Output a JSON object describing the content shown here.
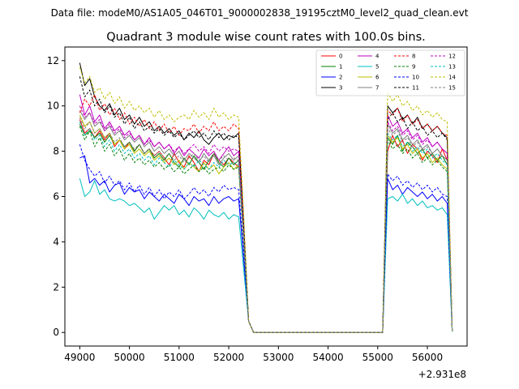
{
  "header": {
    "subtitle": "Data file: modeM0/AS1A05_046T01_9000002838_19195cztM0_level2_quad_clean.evt"
  },
  "chart_data": {
    "type": "line",
    "title": "Quadrant 3 module wise count rates with 100.0s bins.",
    "xlabel": "",
    "ylabel": "",
    "x_offset_label": "+2.931e8",
    "x_offset": 293100000,
    "xlim": [
      48700,
      56800
    ],
    "ylim": [
      -0.6,
      12.6
    ],
    "xticks": [
      49000,
      50000,
      51000,
      52000,
      53000,
      54000,
      55000,
      56000
    ],
    "yticks": [
      0,
      2,
      4,
      6,
      8,
      10,
      12
    ],
    "legend_position": "top-right",
    "x": {
      "seg1_start": 49000,
      "seg1_end": 52200,
      "seg1_step": 100,
      "drop": [
        52300,
        52400,
        52500
      ],
      "gap_end": 55100,
      "seg2_start": 55200,
      "seg2_end": 56400,
      "seg2_step": 100,
      "tail": [
        56500
      ]
    },
    "series": [
      {
        "name": "0",
        "color": "#ff0000",
        "dashed": false,
        "segment1": [
          9.4,
          8.8,
          9.0,
          8.6,
          8.9,
          8.5,
          8.8,
          8.2,
          8.5,
          8.1,
          8.4,
          8.0,
          8.3,
          7.9,
          8.1,
          7.8,
          8.0,
          7.7,
          7.4,
          7.9,
          7.5,
          7.3,
          7.8,
          7.5,
          7.1,
          7.6,
          7.4,
          7.9,
          7.6,
          7.4,
          7.7,
          7.5,
          7.3
        ],
        "segment2": [
          8.0,
          8.7,
          8.2,
          8.5,
          7.9,
          8.3,
          8.1,
          7.6,
          8.0,
          7.8,
          7.5,
          8.1,
          7.6
        ]
      },
      {
        "name": "1",
        "color": "#008000",
        "dashed": false,
        "segment1": [
          9.2,
          8.7,
          8.9,
          8.6,
          8.8,
          8.4,
          8.7,
          8.3,
          8.5,
          8.2,
          8.4,
          8.0,
          8.3,
          7.9,
          8.1,
          7.7,
          7.9,
          7.6,
          7.9,
          7.5,
          7.3,
          7.7,
          7.4,
          7.8,
          7.5,
          7.2,
          7.6,
          7.9,
          7.5,
          7.3,
          7.7,
          7.4,
          7.6
        ],
        "segment2": [
          8.6,
          8.3,
          8.7,
          8.0,
          8.4,
          8.2,
          7.9,
          8.1,
          7.7,
          7.9,
          7.6,
          7.8,
          7.4
        ]
      },
      {
        "name": "2",
        "color": "#0000ff",
        "dashed": false,
        "segment1": [
          7.7,
          7.8,
          6.6,
          6.8,
          6.5,
          6.7,
          6.2,
          6.5,
          6.6,
          6.1,
          6.4,
          6.2,
          6.3,
          5.9,
          6.2,
          6.0,
          5.8,
          6.1,
          5.9,
          5.7,
          6.1,
          5.9,
          5.6,
          6.0,
          5.8,
          5.9,
          5.6,
          6.0,
          5.7,
          5.9,
          6.0,
          5.8,
          5.9
        ],
        "segment2": [
          6.8,
          6.3,
          6.5,
          6.1,
          6.4,
          6.2,
          6.0,
          6.2,
          5.9,
          6.1,
          5.8,
          6.0,
          5.7
        ]
      },
      {
        "name": "3",
        "color": "#000000",
        "dashed": false,
        "segment1": [
          11.9,
          10.9,
          11.2,
          10.4,
          10.0,
          9.8,
          10.1,
          9.6,
          9.9,
          9.4,
          9.6,
          9.2,
          9.5,
          9.1,
          9.3,
          8.9,
          9.1,
          8.8,
          9.0,
          8.7,
          8.9,
          8.5,
          8.8,
          8.6,
          8.9,
          8.5,
          8.3,
          8.6,
          8.8,
          8.5,
          8.7,
          8.6,
          8.8
        ],
        "segment2": [
          10.0,
          9.7,
          9.9,
          9.4,
          9.6,
          9.2,
          9.5,
          9.0,
          9.2,
          8.9,
          9.1,
          8.8,
          8.6
        ]
      },
      {
        "name": "4",
        "color": "#bf00bf",
        "dashed": false,
        "segment1": [
          10.5,
          9.6,
          10.0,
          9.3,
          9.6,
          9.0,
          9.3,
          8.9,
          9.1,
          8.7,
          8.9,
          8.5,
          8.7,
          8.3,
          8.6,
          8.2,
          8.4,
          8.1,
          8.3,
          7.9,
          8.2,
          7.8,
          8.1,
          7.9,
          7.7,
          8.1,
          7.8,
          8.0,
          7.6,
          7.9,
          8.2,
          7.8,
          8.0
        ],
        "segment2": [
          9.6,
          9.1,
          9.3,
          8.8,
          9.0,
          8.6,
          8.8,
          8.4,
          8.6,
          8.2,
          8.4,
          8.1,
          7.9
        ]
      },
      {
        "name": "5",
        "color": "#00bfbf",
        "dashed": false,
        "segment1": [
          6.8,
          6.0,
          6.2,
          6.7,
          6.1,
          6.3,
          5.9,
          5.8,
          5.9,
          5.8,
          5.6,
          5.7,
          5.5,
          5.3,
          5.5,
          5.0,
          5.3,
          5.6,
          5.4,
          5.6,
          5.2,
          5.4,
          5.1,
          5.5,
          5.3,
          5.0,
          5.4,
          5.2,
          5.1,
          5.3,
          5.0,
          5.2,
          5.1
        ],
        "segment2": [
          5.9,
          6.0,
          5.8,
          6.1,
          5.7,
          5.9,
          5.6,
          5.8,
          5.5,
          5.6,
          5.4,
          5.5,
          5.2
        ]
      },
      {
        "name": "6",
        "color": "#bfbf00",
        "dashed": false,
        "segment1": [
          9.6,
          9.1,
          9.3,
          8.8,
          9.0,
          8.6,
          8.8,
          8.3,
          8.5,
          8.1,
          8.3,
          7.9,
          8.1,
          7.8,
          8.0,
          7.6,
          7.8,
          7.5,
          7.7,
          7.4,
          7.6,
          7.2,
          7.5,
          7.3,
          7.1,
          7.5,
          7.2,
          7.4,
          7.0,
          7.3,
          7.5,
          7.2,
          7.4
        ],
        "segment2": [
          8.7,
          8.4,
          8.6,
          8.1,
          8.3,
          7.9,
          8.1,
          7.7,
          7.9,
          7.5,
          7.7,
          7.4,
          7.2
        ]
      },
      {
        "name": "7",
        "color": "#808080",
        "dashed": false,
        "segment1": [
          9.8,
          9.4,
          9.7,
          9.1,
          9.3,
          8.9,
          9.1,
          8.7,
          8.9,
          8.5,
          8.7,
          8.4,
          8.6,
          8.2,
          8.4,
          8.0,
          8.2,
          7.9,
          8.1,
          7.8,
          8.0,
          7.6,
          7.9,
          7.7,
          7.5,
          7.9,
          7.6,
          7.8,
          7.4,
          7.7,
          7.9,
          7.6,
          7.8
        ],
        "segment2": [
          9.2,
          8.8,
          9.0,
          8.5,
          8.7,
          8.3,
          8.5,
          8.1,
          8.3,
          7.9,
          8.1,
          7.8,
          7.6
        ]
      },
      {
        "name": "8",
        "color": "#ff0000",
        "dashed": true,
        "segment1": [
          9.7,
          10.3,
          10.0,
          10.5,
          9.8,
          10.1,
          9.6,
          9.9,
          9.4,
          9.7,
          9.2,
          9.5,
          9.1,
          9.4,
          9.0,
          9.3,
          8.9,
          9.2,
          8.8,
          9.1,
          8.7,
          9.0,
          8.9,
          9.2,
          8.8,
          9.1,
          8.9,
          9.3,
          8.9,
          9.1,
          8.9,
          9.2,
          9.0
        ],
        "segment2": [
          9.8,
          9.6,
          9.9,
          9.3,
          9.6,
          9.2,
          9.4,
          9.0,
          9.2,
          8.9,
          9.1,
          8.8,
          8.7
        ]
      },
      {
        "name": "9",
        "color": "#008000",
        "dashed": true,
        "segment1": [
          9.1,
          8.5,
          8.9,
          8.2,
          8.6,
          8.0,
          8.3,
          7.8,
          8.1,
          7.6,
          7.9,
          7.5,
          7.7,
          7.4,
          7.6,
          7.3,
          7.5,
          7.2,
          7.4,
          7.1,
          7.3,
          7.0,
          7.2,
          7.4,
          7.1,
          7.3,
          7.0,
          7.2,
          7.3,
          7.1,
          7.4,
          7.2,
          7.3
        ],
        "segment2": [
          8.5,
          8.1,
          8.3,
          7.9,
          8.1,
          7.7,
          7.9,
          7.5,
          7.7,
          7.4,
          7.6,
          7.3,
          7.1
        ]
      },
      {
        "name": "10",
        "color": "#0000ff",
        "dashed": true,
        "segment1": [
          8.3,
          7.6,
          7.2,
          6.9,
          7.1,
          6.6,
          6.9,
          6.5,
          6.7,
          6.3,
          6.6,
          6.2,
          6.5,
          6.1,
          6.4,
          6.0,
          6.3,
          5.9,
          6.2,
          6.0,
          6.3,
          5.9,
          6.1,
          6.4,
          6.1,
          6.3,
          6.0,
          6.4,
          6.2,
          6.5,
          6.3,
          6.4,
          6.3
        ],
        "segment2": [
          7.0,
          6.7,
          6.9,
          6.5,
          6.7,
          6.4,
          6.6,
          6.3,
          6.5,
          6.2,
          6.4,
          6.1,
          6.0
        ]
      },
      {
        "name": "11",
        "color": "#000000",
        "dashed": true,
        "segment1": [
          11.3,
          10.4,
          10.7,
          10.0,
          10.3,
          9.7,
          10.0,
          9.5,
          9.7,
          9.2,
          9.5,
          9.0,
          9.3,
          8.9,
          9.1,
          8.8,
          9.0,
          8.7,
          8.9,
          8.6,
          8.8,
          8.5,
          8.7,
          8.9,
          8.6,
          8.8,
          8.5,
          8.9,
          8.6,
          8.8,
          8.5,
          8.7,
          8.6
        ],
        "segment2": [
          9.4,
          9.7,
          9.3,
          9.5,
          9.0,
          9.3,
          8.9,
          9.1,
          8.7,
          8.9,
          8.6,
          8.8,
          8.5
        ]
      },
      {
        "name": "12",
        "color": "#bf00bf",
        "dashed": true,
        "segment1": [
          10.0,
          9.5,
          9.7,
          9.2,
          9.4,
          8.9,
          9.2,
          8.8,
          9.0,
          8.6,
          8.8,
          8.5,
          8.7,
          8.3,
          8.5,
          8.2,
          8.4,
          8.1,
          8.3,
          8.0,
          8.2,
          7.9,
          8.1,
          8.3,
          8.0,
          8.2,
          7.9,
          8.3,
          8.0,
          8.2,
          8.0,
          8.1,
          8.0
        ],
        "segment2": [
          9.3,
          8.9,
          9.1,
          8.7,
          8.9,
          8.5,
          8.7,
          8.3,
          8.5,
          8.2,
          8.4,
          8.1,
          7.9
        ]
      },
      {
        "name": "13",
        "color": "#00bfbf",
        "dashed": true,
        "segment1": [
          9.3,
          8.7,
          9.0,
          8.5,
          8.7,
          8.2,
          8.5,
          8.0,
          8.3,
          7.9,
          8.1,
          7.7,
          7.9,
          7.6,
          7.8,
          7.4,
          7.7,
          7.5,
          7.3,
          7.6,
          7.4,
          7.2,
          7.5,
          7.3,
          7.6,
          7.4,
          7.2,
          7.5,
          7.3,
          7.6,
          7.4,
          7.5,
          7.4
        ],
        "segment2": [
          8.8,
          8.5,
          8.7,
          8.2,
          8.4,
          8.0,
          8.2,
          7.9,
          8.1,
          7.7,
          7.9,
          7.6,
          7.4
        ]
      },
      {
        "name": "14",
        "color": "#bfbf00",
        "dashed": true,
        "segment1": [
          11.7,
          11.0,
          11.3,
          10.6,
          10.8,
          10.3,
          10.6,
          10.1,
          10.4,
          9.9,
          10.2,
          9.8,
          10.0,
          9.7,
          9.9,
          9.5,
          9.8,
          9.4,
          9.6,
          9.3,
          9.5,
          9.6,
          9.4,
          9.8,
          9.5,
          9.7,
          9.4,
          9.9,
          9.5,
          9.7,
          9.4,
          9.6,
          9.5
        ],
        "segment2": [
          10.6,
          10.2,
          10.5,
          10.0,
          10.2,
          9.8,
          10.0,
          9.6,
          9.8,
          9.5,
          9.7,
          9.4,
          9.3
        ]
      },
      {
        "name": "15",
        "color": "#808080",
        "dashed": true,
        "segment1": [
          9.5,
          9.0,
          9.3,
          8.8,
          9.0,
          8.6,
          8.8,
          8.4,
          8.6,
          8.2,
          8.4,
          8.1,
          8.3,
          7.9,
          8.1,
          7.8,
          8.0,
          7.7,
          7.9,
          7.6,
          7.8,
          7.5,
          7.7,
          7.9,
          7.6,
          7.8,
          7.5,
          7.9,
          7.6,
          7.8,
          7.6,
          7.7,
          7.6
        ],
        "segment2": [
          9.0,
          8.7,
          8.9,
          8.4,
          8.6,
          8.2,
          8.4,
          8.0,
          8.2,
          7.9,
          8.1,
          7.8,
          7.6
        ]
      }
    ]
  }
}
